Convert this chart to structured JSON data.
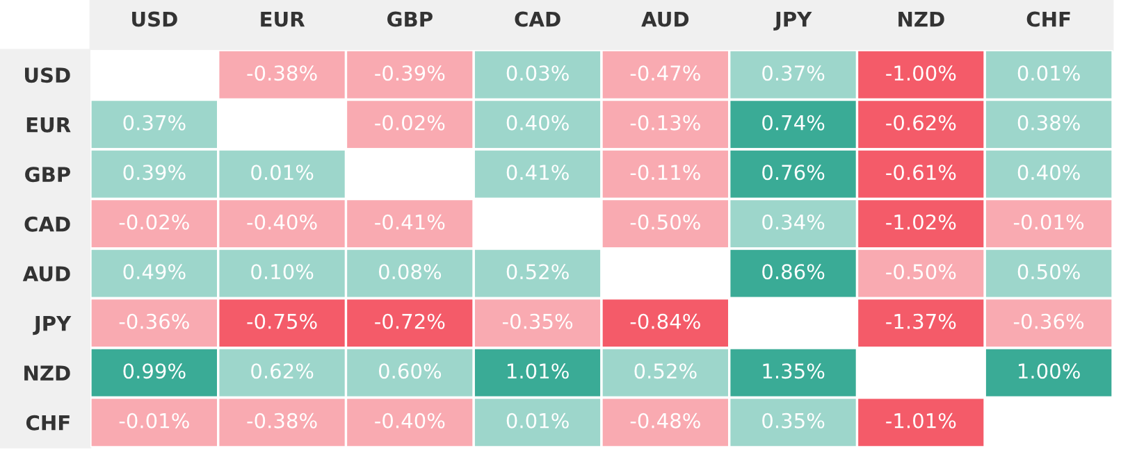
{
  "chart_data": {
    "type": "heatmap",
    "categories": [
      "USD",
      "EUR",
      "GBP",
      "CAD",
      "AUD",
      "JPY",
      "NZD",
      "CHF"
    ],
    "y_categories": [
      "USD",
      "EUR",
      "GBP",
      "CAD",
      "AUD",
      "JPY",
      "NZD",
      "CHF"
    ],
    "cells": [
      [
        null,
        -0.38,
        -0.39,
        0.03,
        -0.47,
        0.37,
        -1.0,
        0.01
      ],
      [
        0.37,
        null,
        -0.02,
        0.4,
        -0.13,
        0.74,
        -0.62,
        0.38
      ],
      [
        0.39,
        0.01,
        null,
        0.41,
        -0.11,
        0.76,
        -0.61,
        0.4
      ],
      [
        -0.02,
        -0.4,
        -0.41,
        null,
        -0.5,
        0.34,
        -1.02,
        -0.01
      ],
      [
        0.49,
        0.1,
        0.08,
        0.52,
        null,
        0.86,
        -0.5,
        0.5
      ],
      [
        -0.36,
        -0.75,
        -0.72,
        -0.35,
        -0.84,
        null,
        -1.37,
        -0.36
      ],
      [
        0.99,
        0.62,
        0.6,
        1.01,
        0.52,
        1.35,
        null,
        1.0
      ],
      [
        -0.01,
        -0.38,
        -0.4,
        0.01,
        -0.48,
        0.35,
        -1.01,
        null
      ]
    ],
    "cell_labels": [
      [
        null,
        "-0.38%",
        "-0.39%",
        "0.03%",
        "-0.47%",
        "0.37%",
        "-1.00%",
        "0.01%"
      ],
      [
        "0.37%",
        null,
        "-0.02%",
        "0.40%",
        "-0.13%",
        "0.74%",
        "-0.62%",
        "0.38%"
      ],
      [
        "0.39%",
        "0.01%",
        null,
        "0.41%",
        "-0.11%",
        "0.76%",
        "-0.61%",
        "0.40%"
      ],
      [
        "-0.02%",
        "-0.40%",
        "-0.41%",
        null,
        "-0.50%",
        "0.34%",
        "-1.02%",
        "-0.01%"
      ],
      [
        "0.49%",
        "0.10%",
        "0.08%",
        "0.52%",
        null,
        "0.86%",
        "-0.50%",
        "0.50%"
      ],
      [
        "-0.36%",
        "-0.75%",
        "-0.72%",
        "-0.35%",
        "-0.84%",
        null,
        "-1.37%",
        "-0.36%"
      ],
      [
        "0.99%",
        "0.62%",
        "0.60%",
        "1.01%",
        "0.52%",
        "1.35%",
        null,
        "1.00%"
      ],
      [
        "-0.01%",
        "-0.38%",
        "-0.40%",
        "0.01%",
        "-0.48%",
        "0.35%",
        "-1.01%",
        null
      ]
    ]
  }
}
